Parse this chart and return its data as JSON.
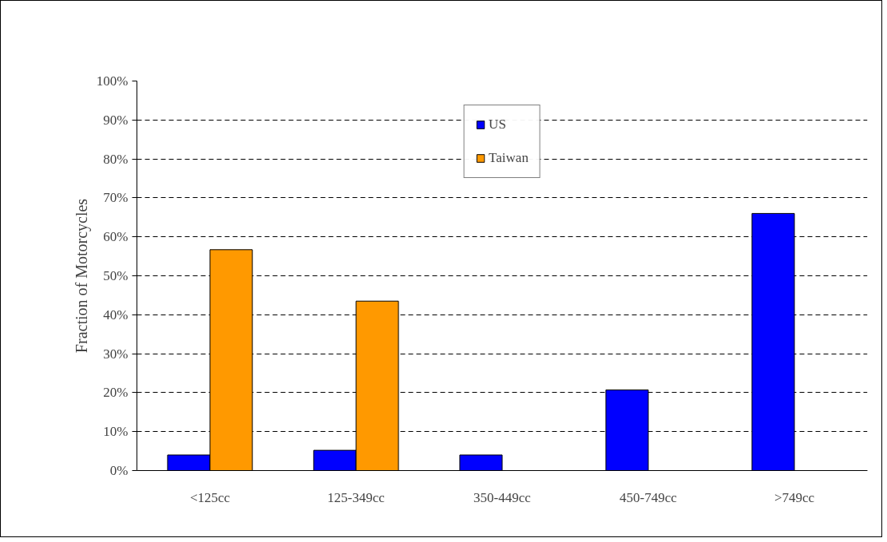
{
  "chart_data": {
    "type": "bar",
    "ylabel": "Fraction of Motorcycles",
    "categories": [
      "<125cc",
      "125-349cc",
      "350-449cc",
      "450-749cc",
      ">749cc"
    ],
    "series": [
      {
        "name": "US",
        "color": "#0000ff",
        "values": [
          4,
          5.2,
          4,
          20.7,
          66
        ]
      },
      {
        "name": "Taiwan",
        "color": "#ff9900",
        "values": [
          56.7,
          43.5,
          null,
          null,
          null
        ]
      }
    ],
    "ylim": [
      0,
      100
    ],
    "yticks": [
      {
        "value": 0,
        "label": "0%"
      },
      {
        "value": 10,
        "label": "10%"
      },
      {
        "value": 20,
        "label": "20%"
      },
      {
        "value": 30,
        "label": "30%"
      },
      {
        "value": 40,
        "label": "40%"
      },
      {
        "value": 50,
        "label": "50%"
      },
      {
        "value": 60,
        "label": "60%"
      },
      {
        "value": 70,
        "label": "70%"
      },
      {
        "value": 80,
        "label": "80%"
      },
      {
        "value": 90,
        "label": "90%"
      },
      {
        "value": 100,
        "label": "100%"
      }
    ],
    "grid": "y",
    "legend": "top"
  }
}
